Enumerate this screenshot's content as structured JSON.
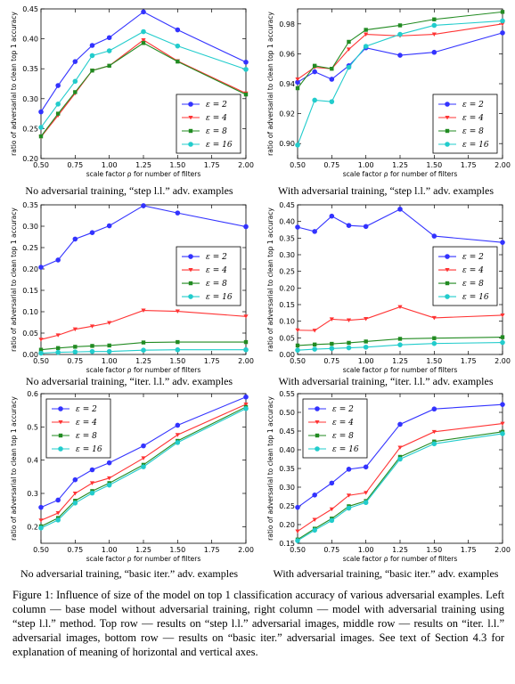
{
  "colors": {
    "eps2": "#3333ff",
    "eps4": "#ff3333",
    "eps8": "#228b22",
    "eps16": "#22cccc"
  },
  "chart_data": [
    {
      "type": "line",
      "subcaption": "No adversarial training, “step l.l.” adv. examples",
      "xlabel": "scale factor ρ for number of filters",
      "ylabel": "ratio of adversarial to clean top 1 accuracy",
      "x": [
        0.5,
        0.625,
        0.75,
        0.875,
        1.0,
        1.25,
        1.5,
        2.0
      ],
      "xticks": [
        "0.50",
        "0.75",
        "1.00",
        "1.25",
        "1.50",
        "1.75",
        "2.00"
      ],
      "xlim": [
        0.5,
        2.0
      ],
      "ylim": [
        0.2,
        0.45
      ],
      "yticks": [
        "0.20",
        "0.25",
        "0.30",
        "0.35",
        "0.40",
        "0.45"
      ],
      "legend_position": "lower-right",
      "series": [
        {
          "name": "ε = 2",
          "values": [
            0.278,
            0.322,
            0.362,
            0.389,
            0.402,
            0.445,
            0.415,
            0.361
          ]
        },
        {
          "name": "ε = 4",
          "values": [
            0.236,
            0.272,
            0.309,
            0.347,
            0.355,
            0.398,
            0.363,
            0.309
          ]
        },
        {
          "name": "ε = 8",
          "values": [
            0.237,
            0.275,
            0.311,
            0.347,
            0.355,
            0.393,
            0.362,
            0.307
          ]
        },
        {
          "name": "ε = 16",
          "values": [
            0.252,
            0.291,
            0.329,
            0.372,
            0.38,
            0.412,
            0.388,
            0.349
          ]
        }
      ]
    },
    {
      "type": "line",
      "subcaption": "With adversarial training, “step l.l.” adv. examples",
      "xlabel": "scale factor ρ for number of filters",
      "ylabel": "ratio of adversarial to clean top 1 accuracy",
      "x": [
        0.5,
        0.625,
        0.75,
        0.875,
        1.0,
        1.25,
        1.5,
        2.0
      ],
      "xticks": [
        "0.50",
        "0.75",
        "1.00",
        "1.25",
        "1.50",
        "1.75",
        "2.00"
      ],
      "xlim": [
        0.5,
        2.0
      ],
      "ylim": [
        0.89,
        0.99
      ],
      "yticks": [
        "0.90",
        "0.92",
        "0.94",
        "0.96",
        "0.98"
      ],
      "legend_position": "lower-right",
      "series": [
        {
          "name": "ε = 2",
          "values": [
            0.941,
            0.948,
            0.943,
            0.952,
            0.964,
            0.959,
            0.961,
            0.974
          ]
        },
        {
          "name": "ε = 4",
          "values": [
            0.943,
            0.951,
            0.95,
            0.963,
            0.973,
            0.972,
            0.973,
            0.98
          ]
        },
        {
          "name": "ε = 8",
          "values": [
            0.937,
            0.952,
            0.95,
            0.968,
            0.976,
            0.979,
            0.983,
            0.988
          ]
        },
        {
          "name": "ε = 16",
          "values": [
            0.899,
            0.929,
            0.928,
            0.951,
            0.965,
            0.973,
            0.979,
            0.982
          ]
        }
      ]
    },
    {
      "type": "line",
      "subcaption": "No adversarial training, “iter. l.l.” adv. examples",
      "xlabel": "scale factor ρ for number of filters",
      "ylabel": "ratio of adversarial to clean top 1 accuracy",
      "x": [
        0.5,
        0.625,
        0.75,
        0.875,
        1.0,
        1.25,
        1.5,
        2.0
      ],
      "xticks": [
        "0.50",
        "0.75",
        "1.00",
        "1.25",
        "1.50",
        "1.75",
        "2.00"
      ],
      "xlim": [
        0.5,
        2.0
      ],
      "ylim": [
        0.0,
        0.35
      ],
      "yticks": [
        "0.00",
        "0.05",
        "0.10",
        "0.15",
        "0.20",
        "0.25",
        "0.30",
        "0.35"
      ],
      "legend_position": "center-right",
      "series": [
        {
          "name": "ε = 2",
          "values": [
            0.204,
            0.221,
            0.27,
            0.285,
            0.301,
            0.348,
            0.331,
            0.299
          ]
        },
        {
          "name": "ε = 4",
          "values": [
            0.035,
            0.045,
            0.059,
            0.066,
            0.074,
            0.103,
            0.101,
            0.089
          ]
        },
        {
          "name": "ε = 8",
          "values": [
            0.011,
            0.015,
            0.018,
            0.02,
            0.021,
            0.028,
            0.029,
            0.029
          ]
        },
        {
          "name": "ε = 16",
          "values": [
            0.003,
            0.005,
            0.006,
            0.007,
            0.007,
            0.01,
            0.011,
            0.011
          ]
        }
      ]
    },
    {
      "type": "line",
      "subcaption": "With adversarial training, “iter. l.l.” adv. examples",
      "xlabel": "scale factor ρ for number of filters",
      "ylabel": "ratio of adversarial to clean top 1 accuracy",
      "x": [
        0.5,
        0.625,
        0.75,
        0.875,
        1.0,
        1.25,
        1.5,
        2.0
      ],
      "xticks": [
        "0.50",
        "0.75",
        "1.00",
        "1.25",
        "1.50",
        "1.75",
        "2.00"
      ],
      "xlim": [
        0.5,
        2.0
      ],
      "ylim": [
        0.0,
        0.45
      ],
      "yticks": [
        "0.00",
        "0.05",
        "0.10",
        "0.15",
        "0.20",
        "0.25",
        "0.30",
        "0.35",
        "0.40",
        "0.45"
      ],
      "legend_position": "center-right",
      "series": [
        {
          "name": "ε = 2",
          "values": [
            0.383,
            0.37,
            0.416,
            0.388,
            0.385,
            0.437,
            0.356,
            0.337
          ]
        },
        {
          "name": "ε = 4",
          "values": [
            0.073,
            0.072,
            0.106,
            0.103,
            0.107,
            0.143,
            0.11,
            0.118
          ]
        },
        {
          "name": "ε = 8",
          "values": [
            0.027,
            0.03,
            0.032,
            0.035,
            0.039,
            0.047,
            0.049,
            0.052
          ]
        },
        {
          "name": "ε = 16",
          "values": [
            0.013,
            0.016,
            0.018,
            0.02,
            0.022,
            0.029,
            0.033,
            0.036
          ]
        }
      ]
    },
    {
      "type": "line",
      "subcaption": "No adversarial training, “basic iter.” adv. examples",
      "xlabel": "scale factor ρ for number of filters",
      "ylabel": "ratio of adversarial to clean top 1 accuracy",
      "x": [
        0.5,
        0.625,
        0.75,
        0.875,
        1.0,
        1.25,
        1.5,
        2.0
      ],
      "xticks": [
        "0.50",
        "0.75",
        "1.00",
        "1.25",
        "1.50",
        "1.75",
        "2.00"
      ],
      "xlim": [
        0.5,
        2.0
      ],
      "ylim": [
        0.15,
        0.6
      ],
      "yticks": [
        "0.2",
        "0.3",
        "0.4",
        "0.5",
        "0.6"
      ],
      "legend_position": "upper-left",
      "series": [
        {
          "name": "ε = 2",
          "values": [
            0.258,
            0.28,
            0.341,
            0.371,
            0.392,
            0.443,
            0.505,
            0.59
          ]
        },
        {
          "name": "ε = 4",
          "values": [
            0.219,
            0.241,
            0.3,
            0.331,
            0.346,
            0.406,
            0.476,
            0.568
          ]
        },
        {
          "name": "ε = 8",
          "values": [
            0.201,
            0.226,
            0.278,
            0.307,
            0.331,
            0.386,
            0.458,
            0.56
          ]
        },
        {
          "name": "ε = 16",
          "values": [
            0.196,
            0.22,
            0.271,
            0.301,
            0.325,
            0.38,
            0.453,
            0.555
          ]
        }
      ]
    },
    {
      "type": "line",
      "subcaption": "With adversarial training, “basic iter.” adv. examples",
      "xlabel": "scale factor ρ for number of filters",
      "ylabel": "ratio of adversarial to clean top 1 accuracy",
      "x": [
        0.5,
        0.625,
        0.75,
        0.875,
        1.0,
        1.25,
        1.5,
        2.0
      ],
      "xticks": [
        "0.50",
        "0.75",
        "1.00",
        "1.25",
        "1.50",
        "1.75",
        "2.00"
      ],
      "xlim": [
        0.5,
        2.0
      ],
      "ylim": [
        0.15,
        0.55
      ],
      "yticks": [
        "0.15",
        "0.20",
        "0.25",
        "0.30",
        "0.35",
        "0.40",
        "0.45",
        "0.50",
        "0.55"
      ],
      "legend_position": "upper-left",
      "series": [
        {
          "name": "ε = 2",
          "values": [
            0.246,
            0.279,
            0.311,
            0.348,
            0.354,
            0.468,
            0.509,
            0.521
          ]
        },
        {
          "name": "ε = 4",
          "values": [
            0.182,
            0.213,
            0.241,
            0.278,
            0.285,
            0.406,
            0.448,
            0.47
          ]
        },
        {
          "name": "ε = 8",
          "values": [
            0.16,
            0.189,
            0.216,
            0.249,
            0.263,
            0.381,
            0.422,
            0.448
          ]
        },
        {
          "name": "ε = 16",
          "values": [
            0.157,
            0.185,
            0.211,
            0.244,
            0.259,
            0.375,
            0.416,
            0.443
          ]
        }
      ]
    }
  ],
  "figure_caption": "Figure 1: Influence of size of the model on top 1 classification accuracy of various adversarial examples. Left column — base model without adversarial training, right column — model with adversarial training using “step l.l.” method. Top row — results on “step l.l.” adversarial images, middle row — results on “iter. l.l.” adversarial images, bottom row — results on “basic iter.” adversarial images. See text of Section 4.3 for explanation of meaning of horizontal and vertical axes."
}
